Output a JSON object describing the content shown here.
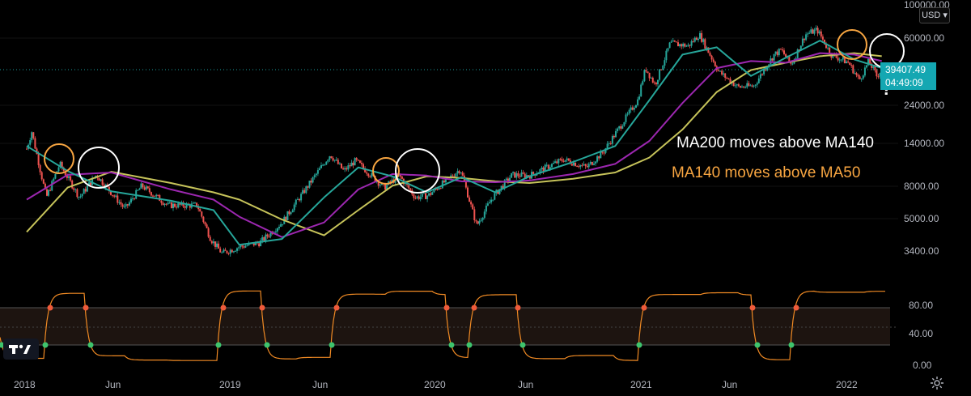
{
  "chart_data": {
    "type": "line",
    "title": "",
    "price_axis": {
      "scale": "log",
      "range": [
        3000,
        100000
      ],
      "ticks": [
        "100000.00",
        "60000.00",
        "39407.49",
        "24000.00",
        "14000.00",
        "8000.00",
        "5000.00",
        "3400.00"
      ]
    },
    "time_axis": {
      "range": [
        "2018-01-01",
        "2022-03-10"
      ],
      "labels": [
        {
          "label": "2018",
          "date": "2018-01-01"
        },
        {
          "label": "Jun",
          "date": "2018-06-01"
        },
        {
          "label": "2019",
          "date": "2019-01-01"
        },
        {
          "label": "Jun",
          "date": "2019-06-01"
        },
        {
          "label": "2020",
          "date": "2020-01-01"
        },
        {
          "label": "Jun",
          "date": "2020-06-01"
        },
        {
          "label": "2021",
          "date": "2021-01-01"
        },
        {
          "label": "Jun",
          "date": "2021-06-01"
        },
        {
          "label": "2022",
          "date": "2022-01-01"
        }
      ]
    },
    "price_series": {
      "x": [
        "2018-01-01",
        "2018-01-10",
        "2018-02-05",
        "2018-03-01",
        "2018-04-05",
        "2018-05-05",
        "2018-06-25",
        "2018-07-25",
        "2018-09-10",
        "2018-11-01",
        "2018-11-25",
        "2018-12-15",
        "2019-01-15",
        "2019-02-20",
        "2019-04-01",
        "2019-05-15",
        "2019-06-26",
        "2019-07-20",
        "2019-08-10",
        "2019-09-30",
        "2019-10-27",
        "2019-11-25",
        "2019-12-18",
        "2020-01-15",
        "2020-02-13",
        "2020-03-13",
        "2020-04-10",
        "2020-05-15",
        "2020-06-15",
        "2020-07-28",
        "2020-08-15",
        "2020-09-25",
        "2020-10-25",
        "2020-11-25",
        "2020-12-25",
        "2021-01-08",
        "2021-01-25",
        "2021-02-21",
        "2021-03-25",
        "2021-04-14",
        "2021-05-19",
        "2021-06-22",
        "2021-07-20",
        "2021-08-25",
        "2021-09-07",
        "2021-09-25",
        "2021-10-20",
        "2021-11-10",
        "2021-12-05",
        "2022-01-05",
        "2022-01-24",
        "2022-02-10",
        "2022-02-24",
        "2022-03-05"
      ],
      "y": [
        13500,
        17000,
        7000,
        11000,
        7000,
        9500,
        6000,
        8200,
        6300,
        6300,
        4000,
        3300,
        3600,
        3800,
        5000,
        8000,
        12500,
        10000,
        11500,
        8000,
        9400,
        7000,
        7200,
        8600,
        10300,
        4800,
        7000,
        9500,
        9400,
        11000,
        11700,
        10500,
        13000,
        18500,
        26000,
        40000,
        32000,
        56000,
        54000,
        63000,
        38000,
        31000,
        31500,
        48000,
        51000,
        42000,
        63000,
        67000,
        48000,
        43000,
        34000,
        44000,
        36000,
        39407.49
      ]
    },
    "moving_averages": [
      {
        "name": "MA50",
        "color": "#26a69a",
        "x": [
          "2018-01-01",
          "2018-03-15",
          "2018-06-01",
          "2018-09-15",
          "2018-11-30",
          "2019-01-15",
          "2019-04-01",
          "2019-06-15",
          "2019-08-15",
          "2019-10-15",
          "2019-12-15",
          "2020-02-15",
          "2020-04-15",
          "2020-06-15",
          "2020-09-01",
          "2020-11-15",
          "2021-01-15",
          "2021-03-15",
          "2021-05-15",
          "2021-07-15",
          "2021-09-15",
          "2021-11-15",
          "2022-01-15",
          "2022-03-05"
        ],
        "y": [
          14000,
          10000,
          7600,
          6700,
          5900,
          3700,
          4000,
          7000,
          10500,
          9300,
          7500,
          9200,
          7500,
          9300,
          11300,
          14000,
          26000,
          48000,
          53000,
          36000,
          46000,
          58000,
          45000,
          40000
        ]
      },
      {
        "name": "MA140",
        "color": "#9c27b0",
        "x": [
          "2018-01-01",
          "2018-03-15",
          "2018-06-01",
          "2018-09-15",
          "2018-11-30",
          "2019-01-15",
          "2019-04-01",
          "2019-06-15",
          "2019-08-15",
          "2019-10-15",
          "2019-12-15",
          "2020-02-15",
          "2020-04-15",
          "2020-06-15",
          "2020-09-01",
          "2020-11-15",
          "2021-01-15",
          "2021-03-15",
          "2021-05-15",
          "2021-07-15",
          "2021-09-15",
          "2021-11-15",
          "2022-01-15",
          "2022-03-05"
        ],
        "y": [
          6800,
          9500,
          9800,
          7800,
          6800,
          5400,
          4100,
          5000,
          7800,
          9600,
          9400,
          8700,
          8600,
          8800,
          9600,
          11000,
          15000,
          25000,
          40000,
          44000,
          43000,
          49000,
          48000,
          44000
        ]
      },
      {
        "name": "MA200",
        "color": "#c6c35a",
        "x": [
          "2018-01-01",
          "2018-03-15",
          "2018-06-01",
          "2018-09-15",
          "2018-11-30",
          "2019-01-15",
          "2019-04-01",
          "2019-06-15",
          "2019-08-15",
          "2019-10-15",
          "2019-12-15",
          "2020-02-15",
          "2020-04-15",
          "2020-06-15",
          "2020-09-01",
          "2020-11-15",
          "2021-01-15",
          "2021-03-15",
          "2021-05-15",
          "2021-07-15",
          "2021-09-15",
          "2021-11-15",
          "2022-01-15",
          "2022-03-05"
        ],
        "y": [
          4400,
          8000,
          9900,
          8500,
          7500,
          6800,
          5200,
          4200,
          5900,
          8200,
          9300,
          9100,
          8700,
          8500,
          9000,
          9800,
          12000,
          17500,
          29000,
          39000,
          43000,
          47000,
          49000,
          47000
        ]
      }
    ],
    "last_price": {
      "value": "39407.49",
      "countdown": "04:49:09"
    },
    "currency": "USD",
    "annotations": [
      {
        "text": "MA200 moves above MA140",
        "color": "#ffffff"
      },
      {
        "text": "MA140 moves above MA50",
        "color": "#f7a541"
      }
    ],
    "oscillator": {
      "range": [
        0,
        100
      ],
      "ticks": [
        "80.00",
        "40.00",
        "0.00"
      ],
      "upper_band": 75,
      "lower_band": 25,
      "midline": 50
    }
  }
}
